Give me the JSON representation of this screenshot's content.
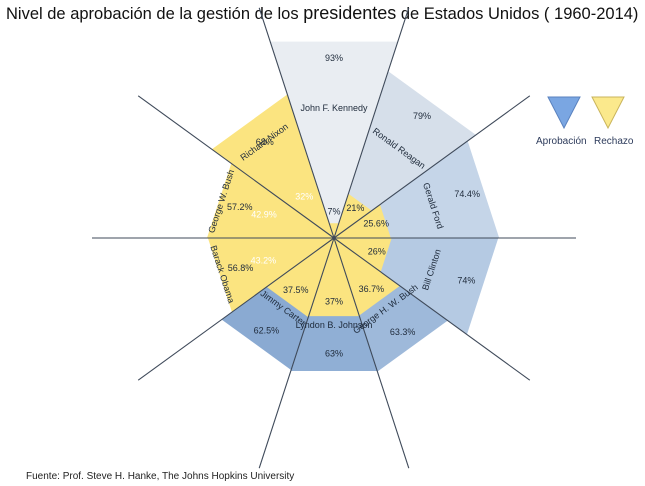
{
  "title": {
    "part1": "Nivel de aprobación de la gestión de los ",
    "part2": "presidentes",
    "part3": " de Estados Unidos ( 1960-2014)"
  },
  "source": "Fuente: Prof. Steve H. Hanke, The Johns Hopkins University",
  "legend": {
    "approval": "Aprobación",
    "rejection": "Rechazo"
  },
  "colors": {
    "approval_marker": "#7aa6e2",
    "rejection_marker": "#fbe98c",
    "rejection_fill": "#fbe480",
    "background": "#ffffff"
  },
  "chart_data": {
    "type": "polar_area",
    "series": [
      {
        "name": "Aprobación"
      },
      {
        "name": "Rechazo"
      }
    ],
    "presidents": [
      {
        "name": "John F. Kennedy",
        "approval": 93,
        "approval_label": "93%",
        "rejection": 7,
        "rejection_label": "7%",
        "color": "#e9edf2"
      },
      {
        "name": "Ronald Reagan",
        "approval": 79,
        "approval_label": "79%",
        "rejection": 21,
        "rejection_label": "21%",
        "color": "#d6dfea"
      },
      {
        "name": "Gerald Ford",
        "approval": 74.4,
        "approval_label": "74.4%",
        "rejection": 25.6,
        "rejection_label": "25.6%",
        "color": "#c5d5e8"
      },
      {
        "name": "Bill Clinton",
        "approval": 74,
        "approval_label": "74%",
        "rejection": 26,
        "rejection_label": "26%",
        "color": "#b5cae3"
      },
      {
        "name": "George H. W. Bush",
        "approval": 63.3,
        "approval_label": "63.3%",
        "rejection": 36.7,
        "rejection_label": "36.7%",
        "color": "#9eb9da"
      },
      {
        "name": "Lyndon B. Johnson",
        "approval": 63,
        "approval_label": "63%",
        "rejection": 37,
        "rejection_label": "37%",
        "color": "#90afd5"
      },
      {
        "name": "Jimmy Carter",
        "approval": 62.5,
        "approval_label": "62.5%",
        "rejection": 37.5,
        "rejection_label": "37.5%",
        "color": "#8aaad2"
      },
      {
        "name": "Barack Obama",
        "approval": 43.2,
        "approval_label": "43.2%",
        "rejection": 56.8,
        "rejection_label": "56.8%",
        "color": "#6f96c6"
      },
      {
        "name": "George W. Bush",
        "approval": 42.9,
        "approval_label": "42.9%",
        "rejection": 57.2,
        "rejection_label": "57.2%",
        "color": "#5f89bd"
      },
      {
        "name": "Richard Nixon",
        "approval": 32,
        "approval_label": "32%",
        "rejection": 68,
        "rejection_label": "68%",
        "color": "#4d7bb2"
      }
    ]
  }
}
